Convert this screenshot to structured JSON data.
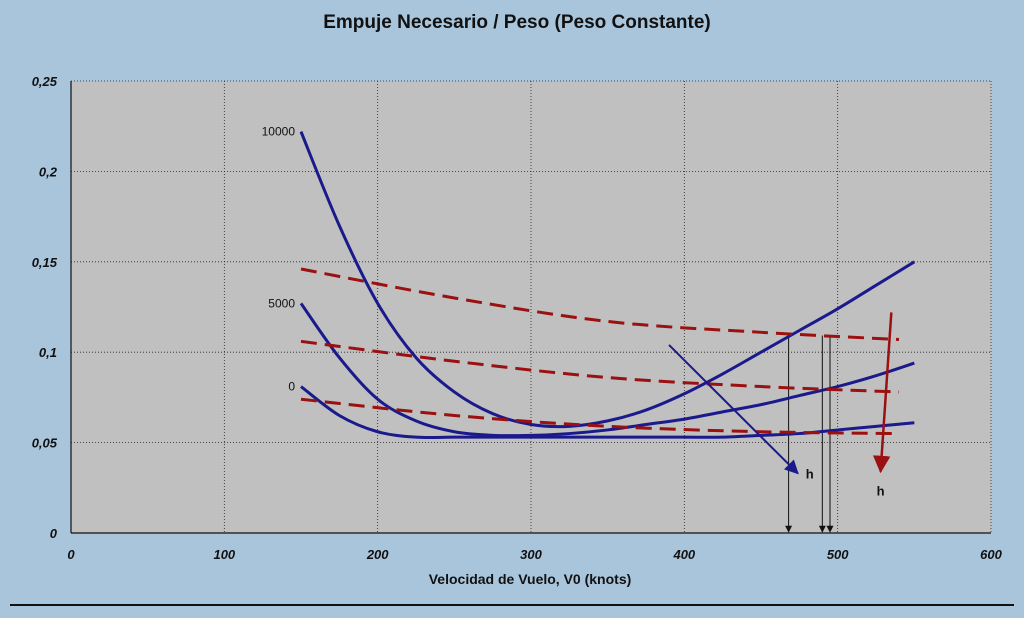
{
  "chart_data": {
    "type": "line",
    "title": "Empuje Necesario / Peso (Peso Constante)",
    "xlabel": "Velocidad de Vuelo, V0 (knots)",
    "ylabel": "",
    "xlim": [
      0,
      600
    ],
    "ylim": [
      0,
      0.25
    ],
    "x_ticks": [
      0,
      100,
      200,
      300,
      400,
      500,
      600
    ],
    "x_tick_labels": [
      "0",
      "100",
      "200",
      "300",
      "400",
      "500",
      "600"
    ],
    "y_ticks": [
      0,
      0.05,
      0.1,
      0.15,
      0.2,
      0.25
    ],
    "y_tick_labels": [
      "0",
      "0,05",
      "0,1",
      "0,15",
      "0,2",
      "0,25"
    ],
    "grid": true,
    "curve_labels": [
      "10000",
      "5000",
      "0"
    ],
    "arrow_labels": [
      "h",
      "h"
    ],
    "colors": {
      "required": "#1a1a8c",
      "available": "#9b1010",
      "background": "#a9c5dc",
      "plot": "#c0c0c0"
    },
    "series": [
      {
        "kind": "required",
        "label": "10000",
        "x": [
          150,
          175,
          200,
          225,
          250,
          275,
          300,
          325,
          350,
          375,
          400,
          425,
          450,
          475,
          500,
          525,
          550
        ],
        "y": [
          0.222,
          0.17,
          0.127,
          0.097,
          0.078,
          0.066,
          0.06,
          0.059,
          0.062,
          0.068,
          0.077,
          0.088,
          0.1,
          0.112,
          0.124,
          0.137,
          0.15
        ]
      },
      {
        "kind": "required",
        "label": "5000",
        "x": [
          150,
          175,
          200,
          225,
          250,
          275,
          300,
          325,
          350,
          375,
          400,
          425,
          450,
          475,
          500,
          525,
          550
        ],
        "y": [
          0.127,
          0.097,
          0.074,
          0.062,
          0.056,
          0.054,
          0.054,
          0.055,
          0.057,
          0.06,
          0.063,
          0.067,
          0.071,
          0.076,
          0.081,
          0.087,
          0.094
        ]
      },
      {
        "kind": "required",
        "label": "0",
        "x": [
          150,
          175,
          200,
          225,
          250,
          275,
          300,
          325,
          350,
          375,
          400,
          425,
          450,
          475,
          500,
          525,
          550
        ],
        "y": [
          0.081,
          0.065,
          0.056,
          0.053,
          0.053,
          0.053,
          0.053,
          0.053,
          0.053,
          0.053,
          0.053,
          0.053,
          0.054,
          0.055,
          0.057,
          0.059,
          0.061
        ]
      },
      {
        "kind": "available",
        "x": [
          150,
          250,
          350,
          450,
          540
        ],
        "y": [
          0.146,
          0.13,
          0.117,
          0.111,
          0.107
        ]
      },
      {
        "kind": "available",
        "x": [
          150,
          250,
          350,
          450,
          540
        ],
        "y": [
          0.106,
          0.095,
          0.086,
          0.081,
          0.078
        ]
      },
      {
        "kind": "available",
        "x": [
          150,
          250,
          350,
          450,
          540
        ],
        "y": [
          0.074,
          0.065,
          0.059,
          0.056,
          0.055
        ]
      }
    ],
    "drop_lines_x": [
      468,
      490,
      495
    ],
    "arrows": [
      {
        "kind": "required",
        "from": [
          390,
          0.104
        ],
        "to": [
          474,
          0.033
        ]
      },
      {
        "kind": "available",
        "from": [
          535,
          0.122
        ],
        "to": [
          528,
          0.034
        ]
      }
    ]
  }
}
